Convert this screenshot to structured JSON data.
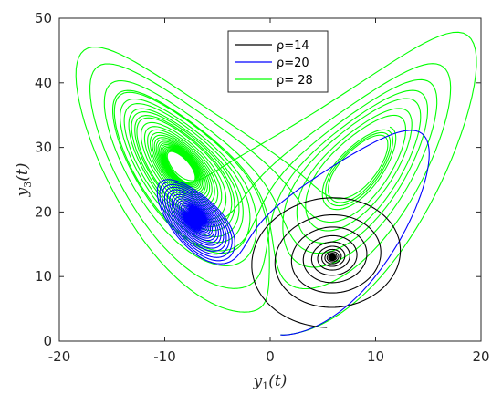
{
  "chart_data": {
    "type": "line",
    "xlabel": "y1(t)",
    "ylabel": "y3(t)",
    "xlabel_parts": {
      "main": "y",
      "sub": "1",
      "rest": "(t)"
    },
    "ylabel_parts": {
      "main": "y",
      "sub": "3",
      "rest": "(t)"
    },
    "xlim": [
      -20,
      20
    ],
    "ylim": [
      0,
      50
    ],
    "xticks": [
      "-20",
      "-10",
      "0",
      "10",
      "20"
    ],
    "yticks": [
      "0",
      "10",
      "20",
      "30",
      "40",
      "50"
    ],
    "xtick_values": [
      -20,
      -10,
      0,
      10,
      20
    ],
    "ytick_values": [
      0,
      10,
      20,
      30,
      40,
      50
    ],
    "grid": false,
    "legend_position": "top-center",
    "series": [
      {
        "name": "ρ=14",
        "color": "#000000",
        "kind": "spiral",
        "start": [
          1.3,
          2.2
        ],
        "center": [
          5.9,
          13.0
        ],
        "theta0": -2.05,
        "turns": 16,
        "decay": 0.018
      },
      {
        "name": "ρ=20",
        "color": "#0000ff",
        "kind": "lorenz",
        "rho": 20,
        "sigma": 10,
        "beta": 2.6667,
        "y0": [
          1,
          1,
          1
        ],
        "dt": 0.005,
        "steps": 7000
      },
      {
        "name": "ρ= 28",
        "color": "#00ff00",
        "kind": "lorenz",
        "rho": 28,
        "sigma": 10,
        "beta": 2.6667,
        "y0": [
          1,
          1,
          1
        ],
        "dt": 0.005,
        "steps": 5200
      }
    ]
  }
}
